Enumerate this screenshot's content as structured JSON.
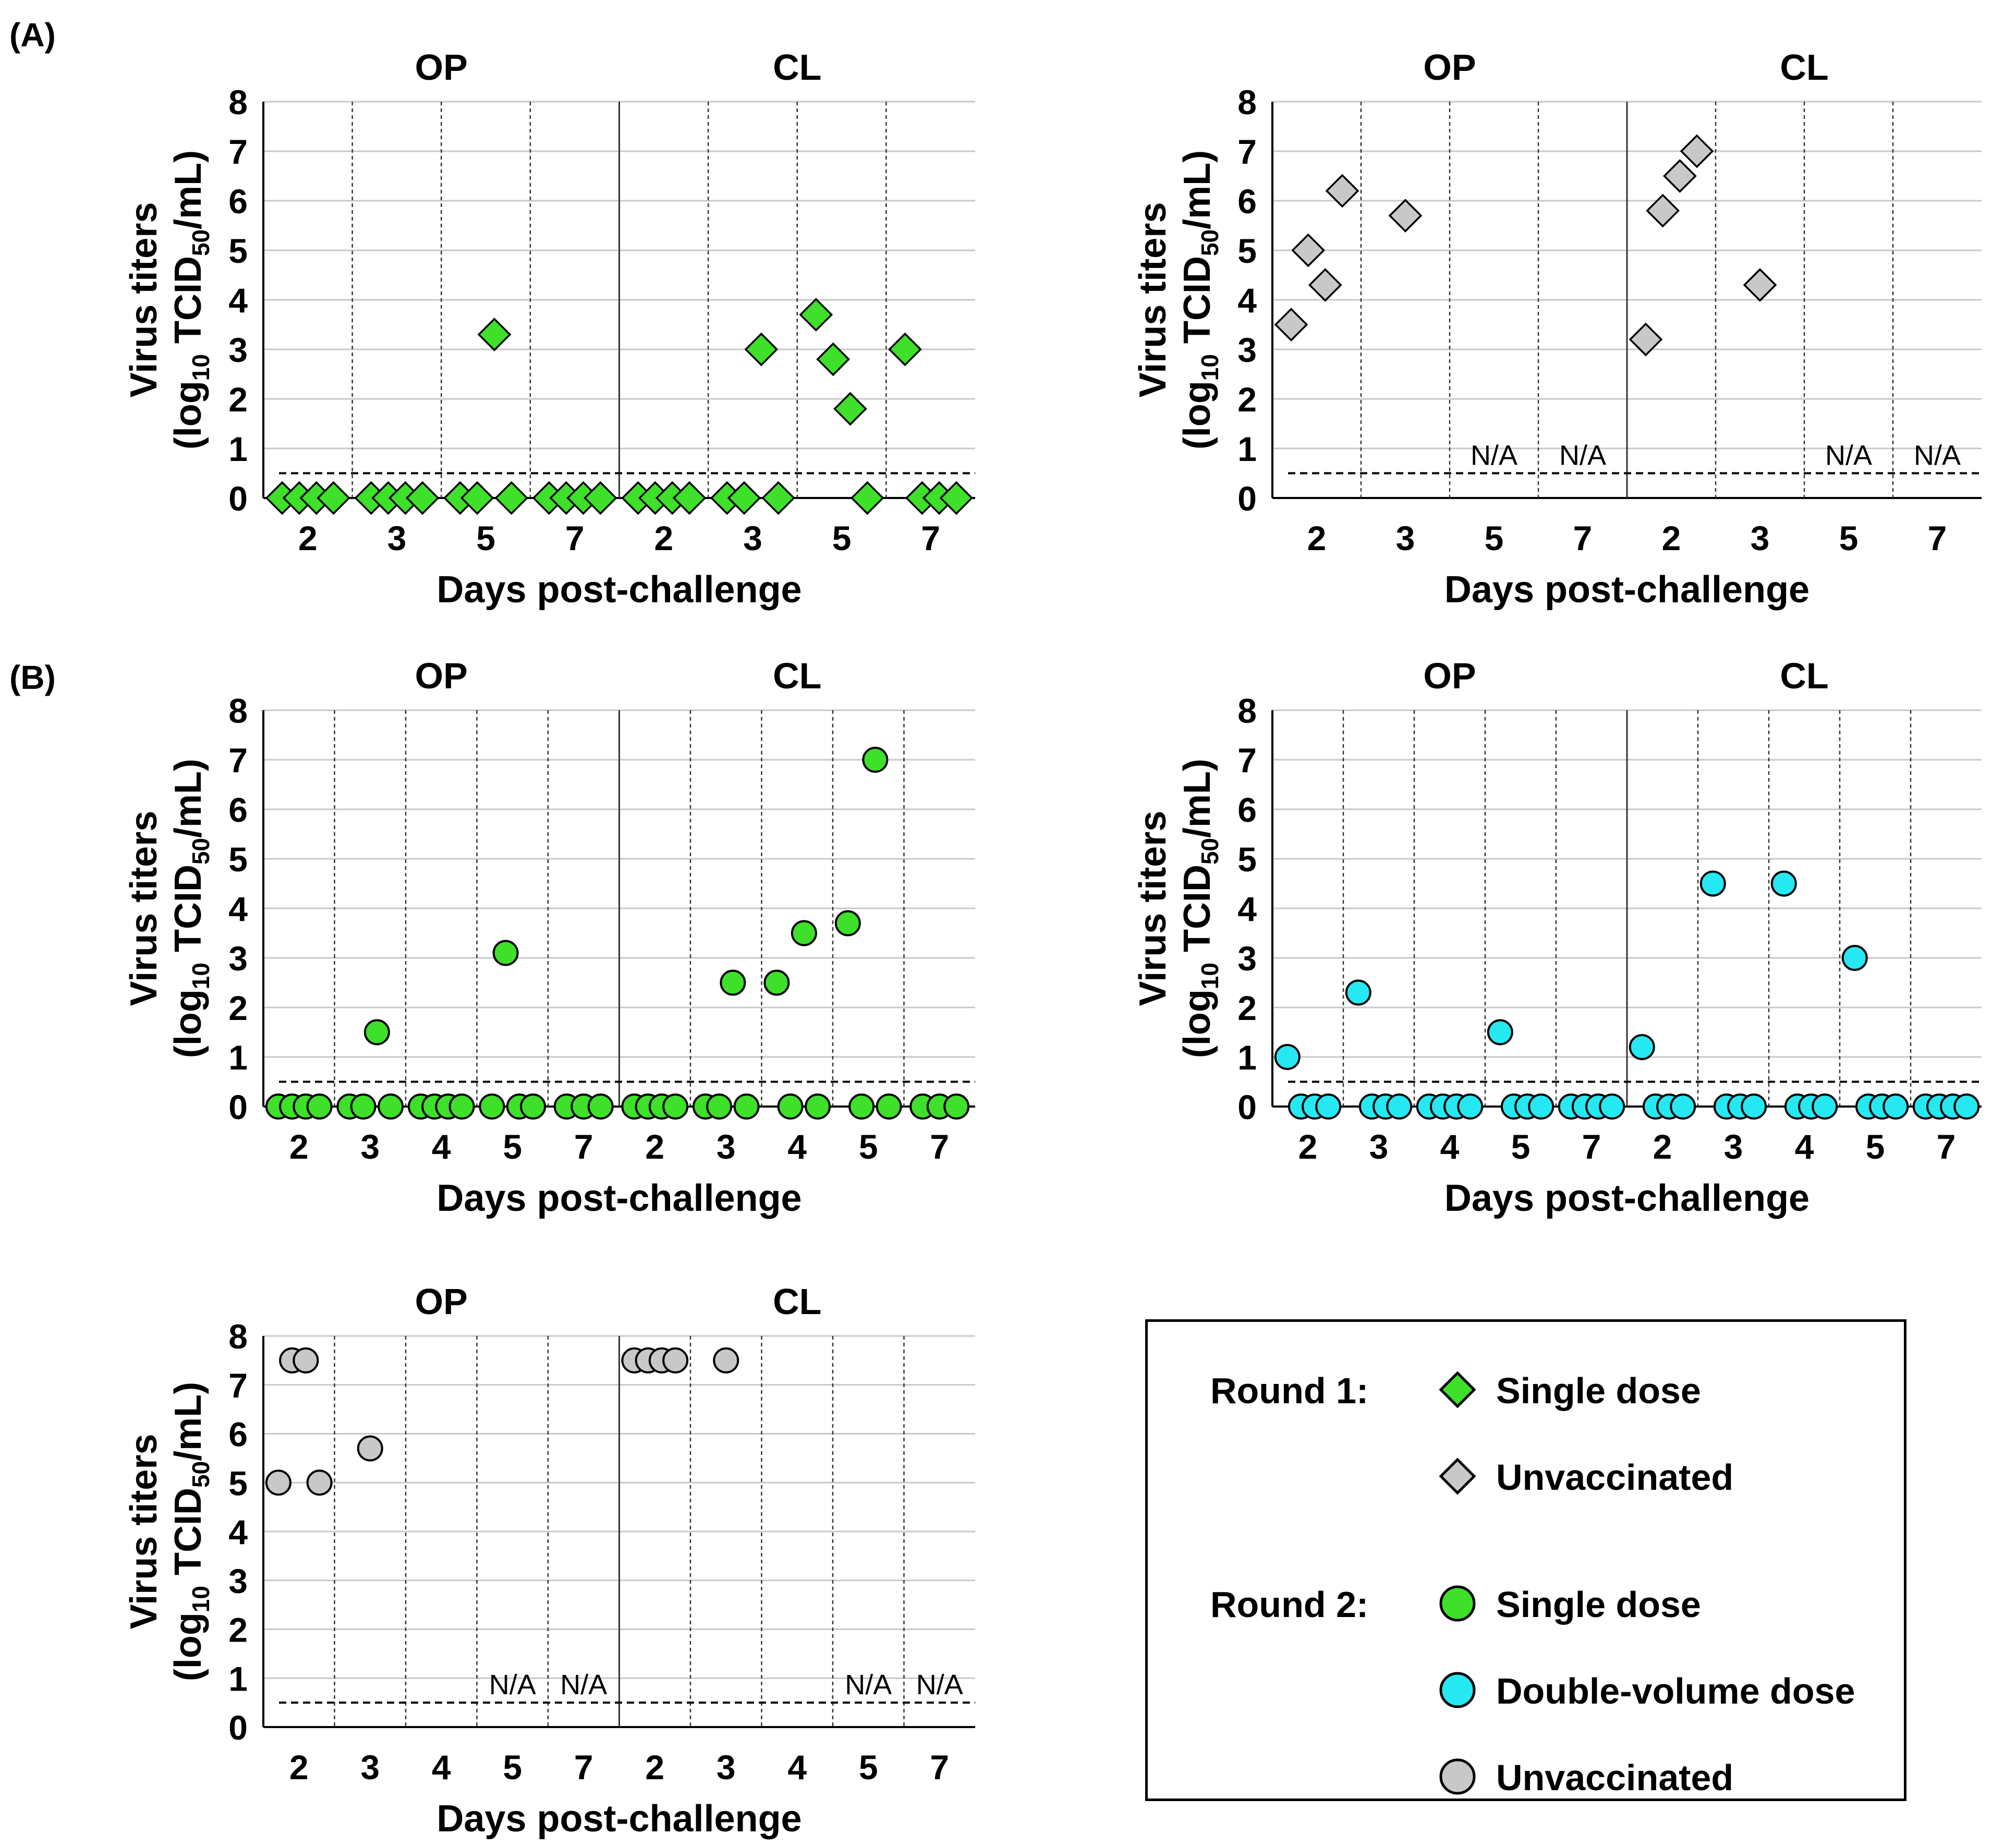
{
  "panel_labels": [
    "(A)",
    "(B)"
  ],
  "colors": {
    "single_dose": "#3ee02a",
    "double_volume_dose": "#26e8f2",
    "unvaccinated": "#c8c8c8",
    "marker_edge": "#000000",
    "gridline": "#c8c8c8",
    "limit_line": "#000000"
  },
  "legend": {
    "round1_label": "Round 1:",
    "round2_label": "Round 2:",
    "items": [
      {
        "round": 1,
        "marker": "diamond",
        "color": "#3ee02a",
        "label": "Single dose"
      },
      {
        "round": 1,
        "marker": "diamond",
        "color": "#c8c8c8",
        "label": "Unvaccinated"
      },
      {
        "round": 2,
        "marker": "circle",
        "color": "#3ee02a",
        "label": "Single dose"
      },
      {
        "round": 2,
        "marker": "circle",
        "color": "#26e8f2",
        "label": "Double-volume dose"
      },
      {
        "round": 2,
        "marker": "circle",
        "color": "#c8c8c8",
        "label": "Unvaccinated"
      }
    ]
  },
  "chart_data": [
    {
      "id": "A-single-dose",
      "type": "scatter",
      "marker": "diamond",
      "color": "#3ee02a",
      "xlabel": "Days post-challenge",
      "ylabel_main": "Virus titers",
      "ylabel_sub": [
        "(log",
        "10",
        " TCID",
        "50",
        "/mL)"
      ],
      "ylim": [
        0,
        8
      ],
      "yticks": [
        0,
        1,
        2,
        3,
        4,
        5,
        6,
        7,
        8
      ],
      "limit_of_detection": 0.5,
      "grid": true,
      "groups": [
        {
          "name": "OP",
          "days": [
            {
              "day": "2",
              "values": [
                0,
                0,
                0,
                0
              ],
              "na": false
            },
            {
              "day": "3",
              "values": [
                0,
                0,
                0,
                0
              ],
              "na": false
            },
            {
              "day": "5",
              "values": [
                0,
                0,
                3.3,
                0
              ],
              "na": false
            },
            {
              "day": "7",
              "values": [
                0,
                0,
                0,
                0
              ],
              "na": false
            }
          ]
        },
        {
          "name": "CL",
          "days": [
            {
              "day": "2",
              "values": [
                0,
                0,
                0,
                0
              ],
              "na": false
            },
            {
              "day": "3",
              "values": [
                0,
                0,
                3.0,
                0
              ],
              "na": false
            },
            {
              "day": "5",
              "values": [
                3.7,
                2.8,
                1.8,
                0
              ],
              "na": false
            },
            {
              "day": "7",
              "values": [
                3.0,
                0,
                0,
                0
              ],
              "na": false
            }
          ]
        }
      ]
    },
    {
      "id": "A-unvaccinated",
      "type": "scatter",
      "marker": "diamond",
      "color": "#c8c8c8",
      "xlabel": "Days post-challenge",
      "ylabel_main": "Virus titers",
      "ylabel_sub": [
        "(log",
        "10",
        " TCID",
        "50",
        "/mL)"
      ],
      "ylim": [
        0,
        8
      ],
      "yticks": [
        0,
        1,
        2,
        3,
        4,
        5,
        6,
        7,
        8
      ],
      "limit_of_detection": 0.5,
      "grid": true,
      "na_label": "N/A",
      "groups": [
        {
          "name": "OP",
          "days": [
            {
              "day": "2",
              "values": [
                3.5,
                5.0,
                4.3,
                6.2
              ],
              "na": false
            },
            {
              "day": "3",
              "values": [
                5.7
              ],
              "na": false
            },
            {
              "day": "5",
              "values": [],
              "na": true
            },
            {
              "day": "7",
              "values": [],
              "na": true
            }
          ]
        },
        {
          "name": "CL",
          "days": [
            {
              "day": "2",
              "values": [
                3.2,
                5.8,
                6.5,
                7.0
              ],
              "na": false
            },
            {
              "day": "3",
              "values": [
                4.3
              ],
              "na": false
            },
            {
              "day": "5",
              "values": [],
              "na": true
            },
            {
              "day": "7",
              "values": [],
              "na": true
            }
          ]
        }
      ]
    },
    {
      "id": "B-single-dose",
      "type": "scatter",
      "marker": "circle",
      "color": "#3ee02a",
      "xlabel": "Days post-challenge",
      "ylabel_main": "Virus titers",
      "ylabel_sub": [
        "(log",
        "10",
        " TCID",
        "50",
        "/mL)"
      ],
      "ylim": [
        0,
        8
      ],
      "yticks": [
        0,
        1,
        2,
        3,
        4,
        5,
        6,
        7,
        8
      ],
      "limit_of_detection": 0.5,
      "grid": true,
      "groups": [
        {
          "name": "OP",
          "days": [
            {
              "day": "2",
              "values": [
                0,
                0,
                0,
                0
              ],
              "na": false
            },
            {
              "day": "3",
              "values": [
                0,
                0,
                1.5,
                0
              ],
              "na": false
            },
            {
              "day": "4",
              "values": [
                0,
                0,
                0,
                0
              ],
              "na": false
            },
            {
              "day": "5",
              "values": [
                0,
                3.1,
                0,
                0
              ],
              "na": false
            },
            {
              "day": "7",
              "values": [
                0,
                0,
                0
              ],
              "na": false
            }
          ]
        },
        {
          "name": "CL",
          "days": [
            {
              "day": "2",
              "values": [
                0,
                0,
                0,
                0
              ],
              "na": false
            },
            {
              "day": "3",
              "values": [
                0,
                0,
                2.5,
                0
              ],
              "na": false
            },
            {
              "day": "4",
              "values": [
                2.5,
                0,
                3.5,
                0
              ],
              "na": false
            },
            {
              "day": "5",
              "values": [
                3.7,
                0,
                7.0,
                0
              ],
              "na": false
            },
            {
              "day": "7",
              "values": [
                0,
                0,
                0
              ],
              "na": false
            }
          ]
        }
      ]
    },
    {
      "id": "B-double-volume-dose",
      "type": "scatter",
      "marker": "circle",
      "color": "#26e8f2",
      "xlabel": "Days post-challenge",
      "ylabel_main": "Virus titers",
      "ylabel_sub": [
        "(log",
        "10",
        " TCID",
        "50",
        "/mL)"
      ],
      "ylim": [
        0,
        8
      ],
      "yticks": [
        0,
        1,
        2,
        3,
        4,
        5,
        6,
        7,
        8
      ],
      "limit_of_detection": 0.5,
      "grid": true,
      "groups": [
        {
          "name": "OP",
          "days": [
            {
              "day": "2",
              "values": [
                1.0,
                0,
                0,
                0
              ],
              "na": false
            },
            {
              "day": "3",
              "values": [
                2.3,
                0,
                0,
                0
              ],
              "na": false
            },
            {
              "day": "4",
              "values": [
                0,
                0,
                0,
                0
              ],
              "na": false
            },
            {
              "day": "5",
              "values": [
                1.5,
                0,
                0,
                0
              ],
              "na": false
            },
            {
              "day": "7",
              "values": [
                0,
                0,
                0,
                0
              ],
              "na": false
            }
          ]
        },
        {
          "name": "CL",
          "days": [
            {
              "day": "2",
              "values": [
                1.2,
                0,
                0,
                0
              ],
              "na": false
            },
            {
              "day": "3",
              "values": [
                4.5,
                0,
                0,
                0
              ],
              "na": false
            },
            {
              "day": "4",
              "values": [
                4.5,
                0,
                0,
                0
              ],
              "na": false
            },
            {
              "day": "5",
              "values": [
                3.0,
                0,
                0,
                0
              ],
              "na": false
            },
            {
              "day": "7",
              "values": [
                0,
                0,
                0,
                0
              ],
              "na": false
            }
          ]
        }
      ]
    },
    {
      "id": "B-unvaccinated",
      "type": "scatter",
      "marker": "circle",
      "color": "#c8c8c8",
      "xlabel": "Days post-challenge",
      "ylabel_main": "Virus titers",
      "ylabel_sub": [
        "(log",
        "10",
        " TCID",
        "50",
        "/mL)"
      ],
      "ylim": [
        0,
        8
      ],
      "yticks": [
        0,
        1,
        2,
        3,
        4,
        5,
        6,
        7,
        8
      ],
      "limit_of_detection": 0.5,
      "grid": true,
      "na_label": "N/A",
      "groups": [
        {
          "name": "OP",
          "days": [
            {
              "day": "2",
              "values": [
                5.0,
                7.5,
                7.5,
                5.0
              ],
              "na": false
            },
            {
              "day": "3",
              "values": [
                5.7
              ],
              "na": false
            },
            {
              "day": "4",
              "values": [],
              "na": false
            },
            {
              "day": "5",
              "values": [],
              "na": true
            },
            {
              "day": "7",
              "values": [],
              "na": true
            }
          ]
        },
        {
          "name": "CL",
          "days": [
            {
              "day": "2",
              "values": [
                7.5,
                7.5,
                7.5,
                7.5
              ],
              "na": false
            },
            {
              "day": "3",
              "values": [
                7.5
              ],
              "na": false
            },
            {
              "day": "4",
              "values": [],
              "na": false
            },
            {
              "day": "5",
              "values": [],
              "na": true
            },
            {
              "day": "7",
              "values": [],
              "na": true
            }
          ]
        }
      ]
    }
  ]
}
